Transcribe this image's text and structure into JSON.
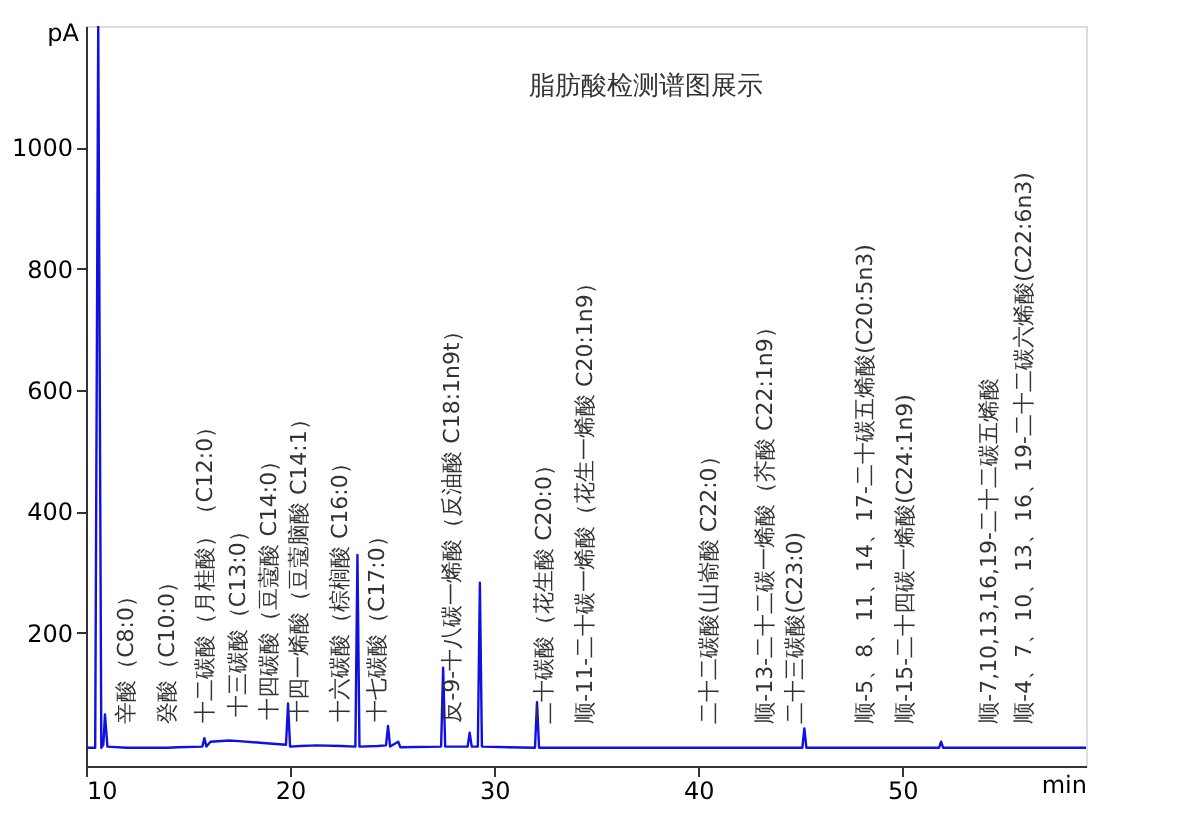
{
  "chart_data": {
    "type": "line",
    "title": "脂肪酸检测谱图展示",
    "xlabel": "min",
    "ylabel": "pA",
    "x": [
      10.0,
      10.45,
      10.6,
      10.75,
      10.85,
      10.93,
      11.05,
      12,
      14,
      14.5,
      15.7,
      15.8,
      15.9,
      16.1,
      17,
      17.5,
      19,
      19.8,
      19.9,
      20.0,
      20.5,
      21.3,
      22.5,
      23.2,
      23.3,
      23.4,
      24.3,
      24.7,
      24.8,
      24.9,
      25.3,
      25.4,
      27.4,
      27.5,
      27.6,
      28,
      28.7,
      28.8,
      28.9,
      29.2,
      29.3,
      29.4,
      32.0,
      32.1,
      32.2,
      32.5,
      34.5,
      40.6,
      43.3,
      44.8,
      45.1,
      45.2,
      45.3,
      48.2,
      50.2,
      51.8,
      51.9,
      52.0,
      54.3,
      56,
      59
    ],
    "series": [
      {
        "color": "#1010e0",
        "values": [
          10,
          10,
          1200,
          10,
          15,
          65,
          12,
          10,
          10,
          11,
          12,
          26,
          12,
          20,
          22,
          21,
          17,
          15,
          83,
          12,
          13,
          14,
          13,
          12,
          328,
          12,
          13,
          14,
          46,
          12,
          20,
          11,
          12,
          142,
          12,
          12,
          12,
          35,
          12,
          12,
          282,
          12,
          10,
          85,
          10,
          10,
          10,
          10,
          10,
          10,
          10,
          42,
          10,
          10,
          10,
          10,
          20,
          10,
          10,
          10,
          10
        ]
      }
    ],
    "xlim": [
      10,
      59
    ],
    "ylim": [
      -20,
      1200
    ],
    "xticks": [
      10,
      20,
      30,
      40,
      50
    ],
    "yticks": [
      200,
      400,
      600,
      800,
      1000
    ],
    "grid": false,
    "marker": "none",
    "line_style": "solid",
    "annotations": [
      {
        "text": "辛酸（C8:0）",
        "x": 12,
        "y": 10
      },
      {
        "text": "癸酸（C10:0）",
        "x": 14,
        "y": 10
      },
      {
        "text": "十二碳酸（月桂酸）（C12:0）",
        "x": 15.9,
        "y": 12
      },
      {
        "text": "十三碳酸（C13:0）",
        "x": 17.5,
        "y": 21
      },
      {
        "text": "十四碳酸（豆蔻酸 C14:0）",
        "x": 19,
        "y": 17
      },
      {
        "text": "十四一烯酸（豆蔻脑酸 C14:1）",
        "x": 20.5,
        "y": 13
      },
      {
        "text": "十六碳酸（棕榈酸 C16:0）",
        "x": 22.5,
        "y": 13
      },
      {
        "text": "十七碳酸（C17:0）",
        "x": 24.3,
        "y": 13
      },
      {
        "text": "反-9-十八碳一烯酸（反油酸 C18:1n9t）",
        "x": 28,
        "y": 12
      },
      {
        "text": "二十碳酸（花生酸 C20:0）",
        "x": 32.5,
        "y": 10
      },
      {
        "text": "顺-11-二十碳一烯酸（花生一烯酸 C20:1n9）",
        "x": 34.5,
        "y": 10
      },
      {
        "text": "二十二碳酸(山嵛酸 C22:0）",
        "x": 40.6,
        "y": 10
      },
      {
        "text": "顺-13-二十二碳一烯酸（芥酸 C22:1n9）",
        "x": 43.3,
        "y": 10
      },
      {
        "text": "二十三碳酸(C23:0)",
        "x": 44.8,
        "y": 10
      },
      {
        "text": "顺-5、8、11、14、17-二十碳五烯酸(C20:5n3)",
        "x": 48.2,
        "y": 10
      },
      {
        "text": "顺-15-二十四碳一烯酸(C24:1n9)",
        "x": 50.2,
        "y": 10
      },
      {
        "text": "顺-7,10,13,16,19-二十二碳五烯酸",
        "x": 54.3,
        "y": 10
      },
      {
        "text": "顺-4、7、10、13、16、19-二十二碳六烯酸(C22:6n3)",
        "x": 56,
        "y": 10
      }
    ]
  }
}
